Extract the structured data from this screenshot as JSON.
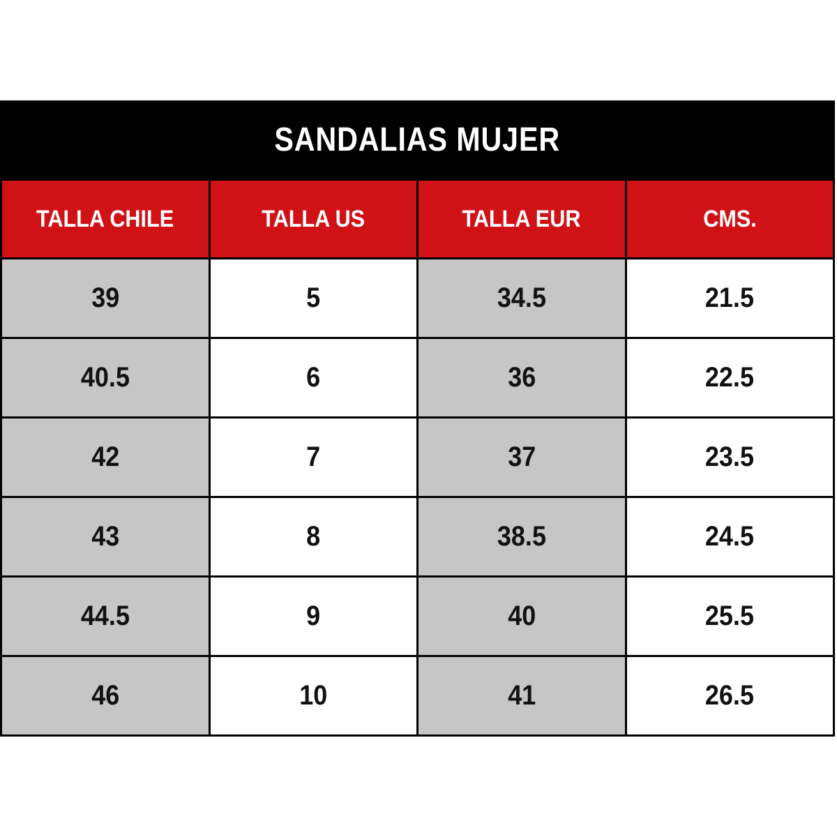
{
  "title": {
    "text": "SANDALIAS MUJER"
  },
  "colors": {
    "title_band_bg": "#000000",
    "title_text": "#ffffff",
    "header_bg": "#d01217",
    "header_text": "#ffffff",
    "odd_column_bg": "#c6c6c6",
    "even_column_bg": "#ffffff",
    "border": "#000000",
    "cell_text": "#111111",
    "page_bg": "#ffffff"
  },
  "table": {
    "columns": [
      "TALLA CHILE",
      "TALLA US",
      "TALLA EUR",
      "CMS."
    ],
    "rows": [
      [
        "39",
        "5",
        "34.5",
        "21.5"
      ],
      [
        "40.5",
        "6",
        "36",
        "22.5"
      ],
      [
        "42",
        "7",
        "37",
        "23.5"
      ],
      [
        "43",
        "8",
        "38.5",
        "24.5"
      ],
      [
        "44.5",
        "9",
        "40",
        "25.5"
      ],
      [
        "46",
        "10",
        "41",
        "26.5"
      ]
    ]
  },
  "chart_data": {
    "type": "table",
    "title": "SANDALIAS MUJER",
    "columns": [
      "TALLA CHILE",
      "TALLA US",
      "TALLA EUR",
      "CMS."
    ],
    "rows": [
      [
        39,
        5,
        34.5,
        21.5
      ],
      [
        40.5,
        6,
        36,
        22.5
      ],
      [
        42,
        7,
        37,
        23.5
      ],
      [
        43,
        8,
        38.5,
        24.5
      ],
      [
        44.5,
        9,
        40,
        25.5
      ],
      [
        46,
        10,
        41,
        26.5
      ]
    ],
    "layout_hints": {
      "title_position": "top-band-black",
      "header_style": "red-background-white-text",
      "column_backgrounds": [
        "gray",
        "white",
        "gray",
        "white"
      ],
      "grid": true
    }
  }
}
